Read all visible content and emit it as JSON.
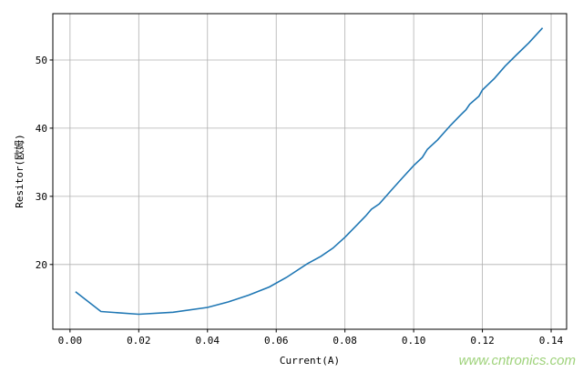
{
  "chart_data": {
    "type": "line",
    "title": "",
    "xlabel": "Current(A)",
    "ylabel": "Resitor(欧姆)",
    "xlim": [
      -0.005,
      0.1445
    ],
    "ylim": [
      10.5,
      56.8
    ],
    "xticks": [
      "0.00",
      "0.02",
      "0.04",
      "0.06",
      "0.08",
      "0.10",
      "0.12",
      "0.14"
    ],
    "yticks": [
      "20",
      "30",
      "40",
      "50"
    ],
    "grid": true,
    "line_color": "#1f77b4",
    "series": [
      {
        "x": [
          0.0016,
          0.009,
          0.02,
          0.03,
          0.04,
          0.046,
          0.052,
          0.058,
          0.063,
          0.069,
          0.073,
          0.0765,
          0.08,
          0.0837,
          0.086,
          0.0877,
          0.09,
          0.0935,
          0.0967,
          0.1,
          0.1025,
          0.104,
          0.107,
          0.1107,
          0.113,
          0.1152,
          0.1163,
          0.119,
          0.12,
          0.1235,
          0.1266,
          0.13,
          0.1335,
          0.1375
        ],
        "y": [
          16.0,
          13.1,
          12.7,
          13.0,
          13.7,
          14.5,
          15.5,
          16.7,
          18.1,
          20.1,
          21.2,
          22.4,
          24.0,
          25.9,
          27.1,
          28.1,
          28.9,
          30.9,
          32.7,
          34.5,
          35.7,
          36.9,
          38.3,
          40.4,
          41.6,
          42.7,
          43.5,
          44.7,
          45.6,
          47.3,
          49.1,
          50.8,
          52.5,
          54.7
        ]
      }
    ]
  },
  "watermark": "www.cntronics.com"
}
